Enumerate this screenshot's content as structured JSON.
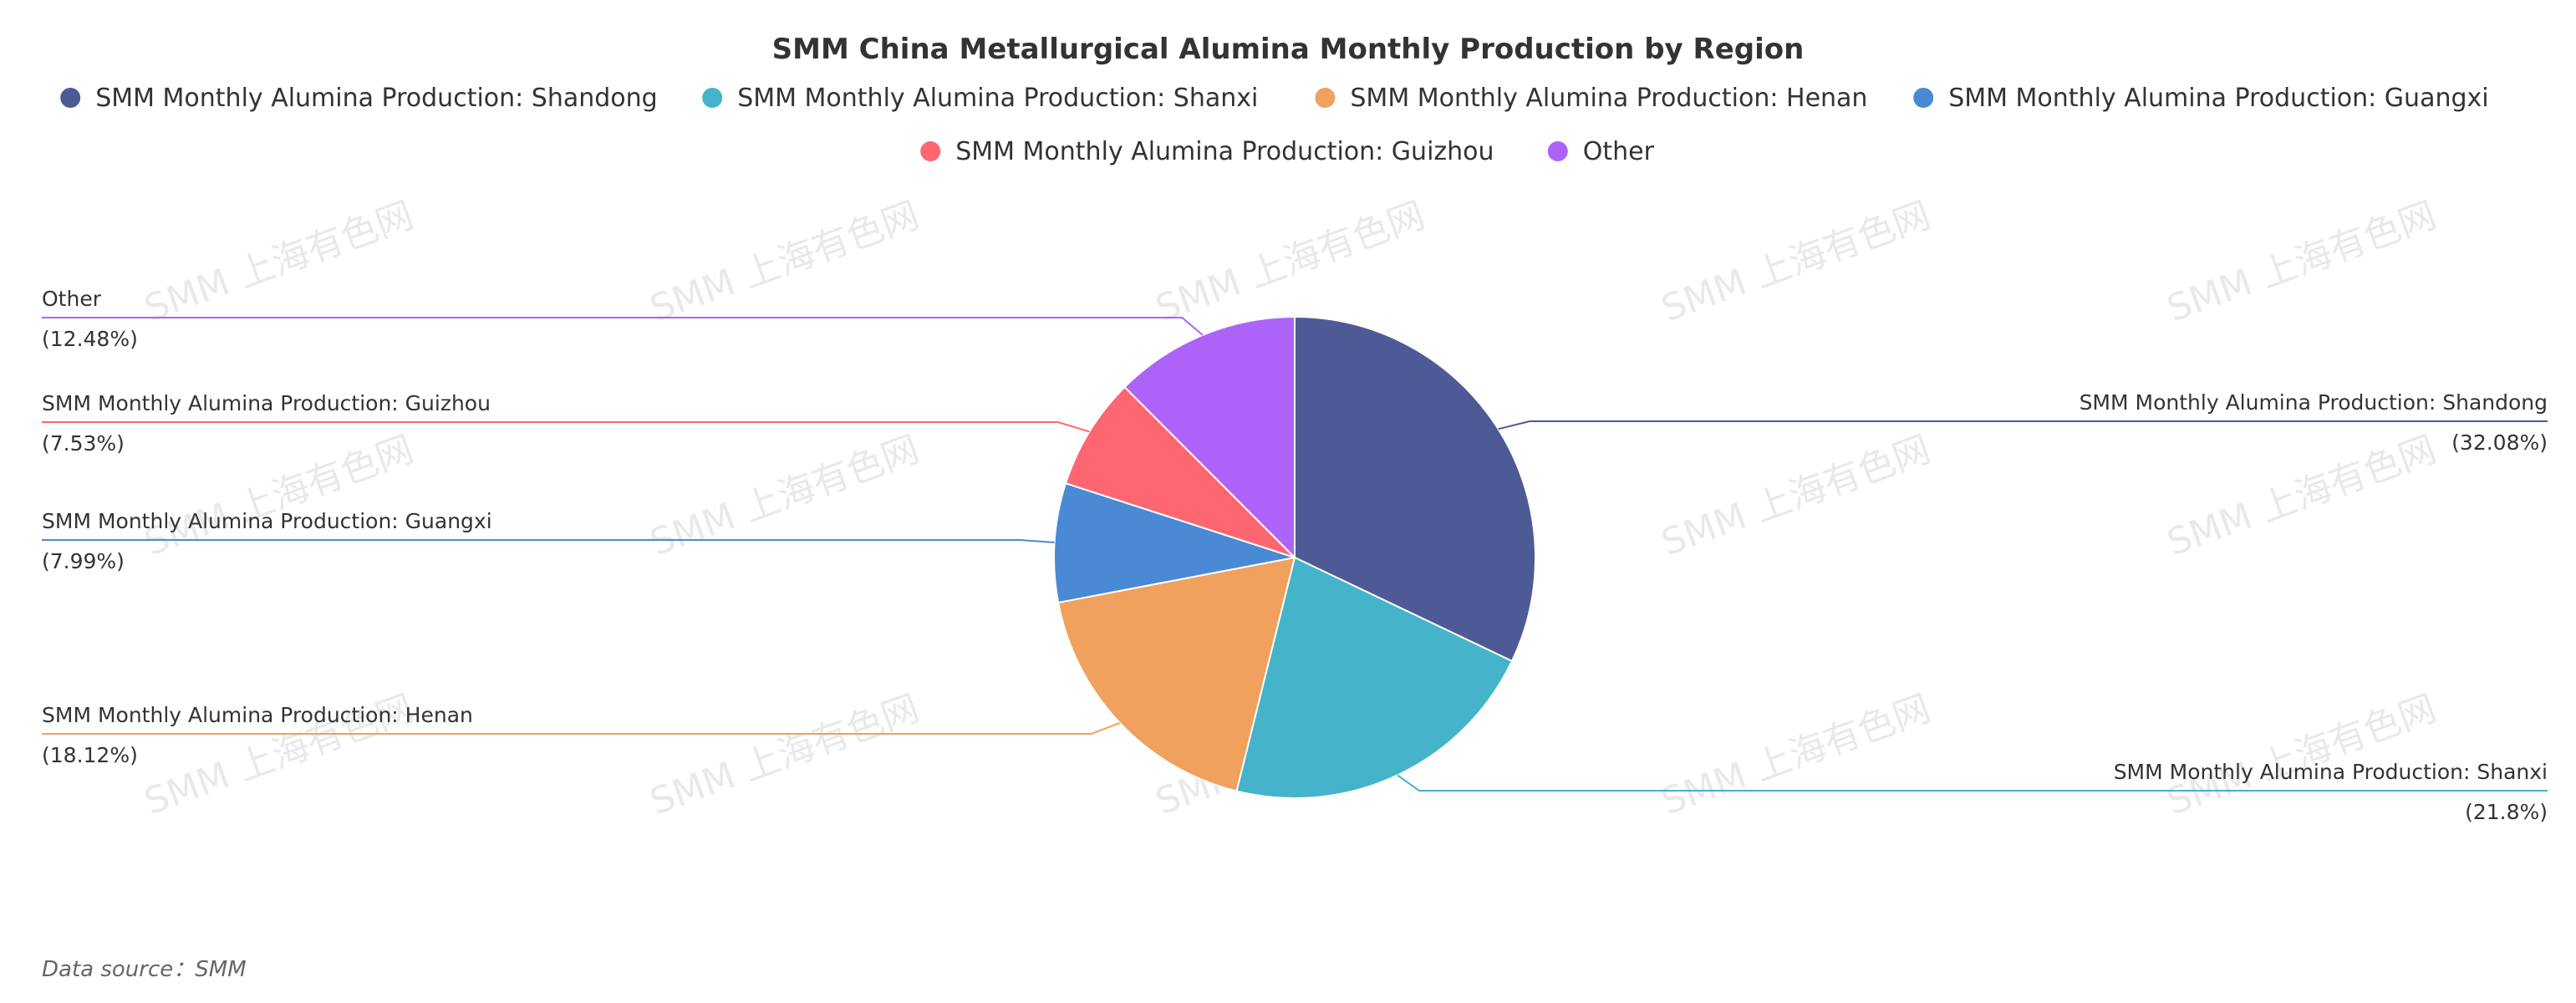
{
  "colors": {
    "shandong": "#4e5a96",
    "shanxi": "#45b3c9",
    "henan": "#efa15d",
    "guangxi": "#4a89d4",
    "guizhou": "#fe6671",
    "other": "#ae63f8"
  },
  "watermark": "SMM 上海有色网",
  "footer": "Data source：SMM",
  "chart_data": {
    "type": "pie",
    "title": "SMM China Metallurgical Alumina Monthly Production by Region",
    "legend_position": "top",
    "slices": [
      {
        "name": "SMM Monthly Alumina Production: Shandong",
        "value": 32.08,
        "label": "(32.08%)",
        "color_key": "shandong"
      },
      {
        "name": "SMM Monthly Alumina Production: Shanxi",
        "value": 21.8,
        "label": "(21.8%)",
        "color_key": "shanxi"
      },
      {
        "name": "SMM Monthly Alumina Production: Henan",
        "value": 18.12,
        "label": "(18.12%)",
        "color_key": "henan"
      },
      {
        "name": "SMM Monthly Alumina Production: Guangxi",
        "value": 7.99,
        "label": "(7.99%)",
        "color_key": "guangxi"
      },
      {
        "name": "SMM Monthly Alumina Production: Guizhou",
        "value": 7.53,
        "label": "(7.53%)",
        "color_key": "guizhou"
      },
      {
        "name": "Other",
        "value": 12.48,
        "label": "(12.48%)",
        "color_key": "other"
      }
    ]
  }
}
